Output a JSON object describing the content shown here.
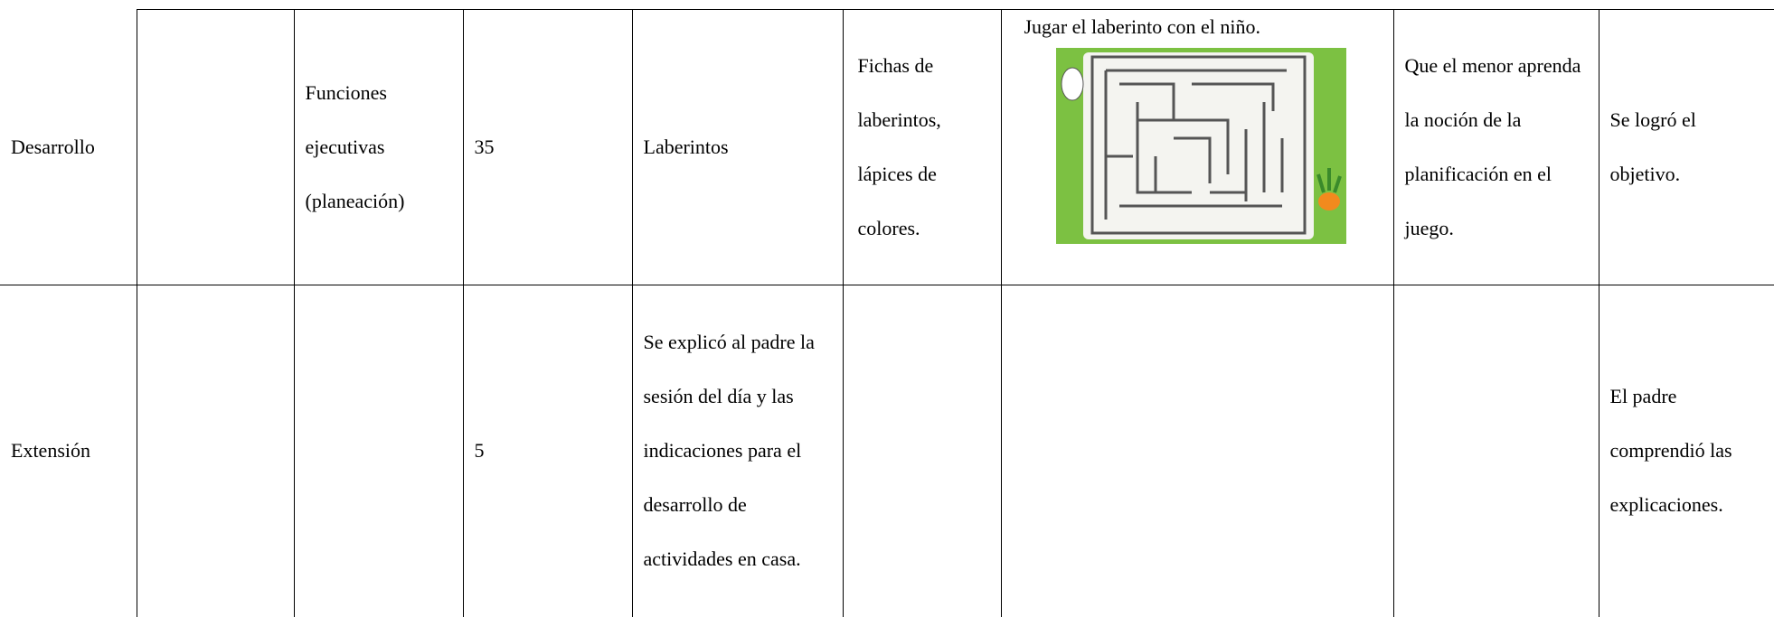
{
  "table": {
    "rows": [
      {
        "cells": [
          "Desarrollo",
          null,
          "Funciones ejecutivas (planeación)",
          "35",
          "Laberintos",
          "Fichas de laberintos, lápices de colores.",
          "Jugar el laberinto con el niño.",
          "Que el menor aprenda la noción de la planificación en el juego.",
          "Se logró el objetivo."
        ]
      },
      {
        "cells": [
          "Extensión",
          null,
          null,
          "5",
          "Se explicó al padre la sesión del día y las indicaciones para el desarrollo de actividades en casa.",
          null,
          null,
          null,
          "El padre comprendió las explicaciones."
        ]
      }
    ]
  }
}
